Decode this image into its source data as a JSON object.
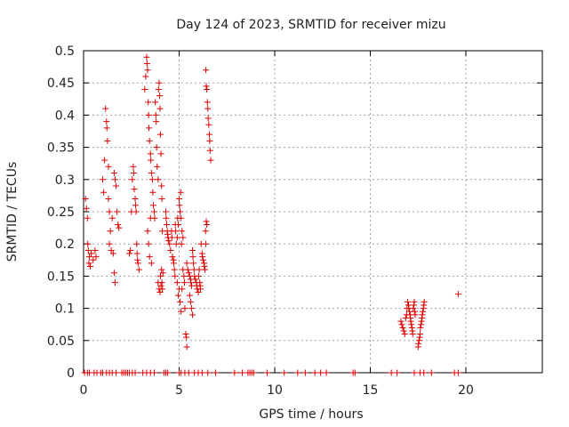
{
  "chart_data": {
    "type": "scatter",
    "title": "Day 124 of 2023, SRMTID for receiver mizu",
    "xlabel": "GPS time / hours",
    "ylabel": "SRMTID / TECUs",
    "xlim": [
      0,
      24
    ],
    "ylim": [
      0,
      0.5
    ],
    "xticks": [
      0,
      5,
      10,
      15,
      20
    ],
    "yticks": [
      0,
      0.05,
      0.1,
      0.15,
      0.2,
      0.25,
      0.3,
      0.35,
      0.4,
      0.45,
      0.5
    ],
    "xtick_labels": [
      "0",
      "5",
      "10",
      "15",
      "20"
    ],
    "ytick_labels": [
      "0",
      "0.05",
      "0.1",
      "0.15",
      "0.2",
      "0.25",
      "0.3",
      "0.35",
      "0.4",
      "0.45",
      "0.5"
    ],
    "grid": true,
    "marker": "+",
    "marker_color": "#dd0000",
    "series": [
      {
        "name": "mizu",
        "points": [
          [
            0.1,
            0.27
          ],
          [
            0.15,
            0.255
          ],
          [
            0.2,
            0.24
          ],
          [
            0.22,
            0.2
          ],
          [
            0.25,
            0.19
          ],
          [
            0.28,
            0.17
          ],
          [
            0.3,
            0.18
          ],
          [
            0.35,
            0.165
          ],
          [
            0.4,
            0.185
          ],
          [
            0.5,
            0.175
          ],
          [
            0.6,
            0.19
          ],
          [
            0.65,
            0.18
          ],
          [
            1.0,
            0.3
          ],
          [
            1.05,
            0.28
          ],
          [
            1.1,
            0.33
          ],
          [
            1.15,
            0.41
          ],
          [
            1.2,
            0.39
          ],
          [
            1.22,
            0.38
          ],
          [
            1.25,
            0.36
          ],
          [
            1.3,
            0.32
          ],
          [
            1.3,
            0.27
          ],
          [
            1.35,
            0.25
          ],
          [
            1.35,
            0.2
          ],
          [
            1.4,
            0.22
          ],
          [
            1.45,
            0.19
          ],
          [
            1.5,
            0.24
          ],
          [
            1.55,
            0.185
          ],
          [
            1.6,
            0.31
          ],
          [
            1.65,
            0.3
          ],
          [
            1.7,
            0.29
          ],
          [
            1.75,
            0.25
          ],
          [
            1.8,
            0.23
          ],
          [
            1.85,
            0.225
          ],
          [
            1.6,
            0.155
          ],
          [
            1.65,
            0.14
          ],
          [
            2.4,
            0.185
          ],
          [
            2.45,
            0.19
          ],
          [
            2.5,
            0.25
          ],
          [
            2.55,
            0.3
          ],
          [
            2.6,
            0.32
          ],
          [
            2.62,
            0.31
          ],
          [
            2.65,
            0.285
          ],
          [
            2.7,
            0.27
          ],
          [
            2.72,
            0.26
          ],
          [
            2.75,
            0.25
          ],
          [
            2.78,
            0.2
          ],
          [
            2.8,
            0.185
          ],
          [
            2.82,
            0.175
          ],
          [
            2.85,
            0.17
          ],
          [
            2.9,
            0.16
          ],
          [
            3.2,
            0.44
          ],
          [
            3.25,
            0.46
          ],
          [
            3.3,
            0.49
          ],
          [
            3.32,
            0.48
          ],
          [
            3.35,
            0.47
          ],
          [
            3.38,
            0.42
          ],
          [
            3.4,
            0.4
          ],
          [
            3.42,
            0.38
          ],
          [
            3.45,
            0.36
          ],
          [
            3.5,
            0.34
          ],
          [
            3.52,
            0.33
          ],
          [
            3.55,
            0.31
          ],
          [
            3.6,
            0.3
          ],
          [
            3.62,
            0.28
          ],
          [
            3.65,
            0.26
          ],
          [
            3.7,
            0.25
          ],
          [
            3.72,
            0.24
          ],
          [
            3.75,
            0.42
          ],
          [
            3.78,
            0.4
          ],
          [
            3.8,
            0.39
          ],
          [
            3.82,
            0.35
          ],
          [
            3.85,
            0.32
          ],
          [
            3.9,
            0.3
          ],
          [
            3.92,
            0.44
          ],
          [
            3.95,
            0.45
          ],
          [
            3.98,
            0.43
          ],
          [
            4.0,
            0.41
          ],
          [
            4.02,
            0.37
          ],
          [
            4.05,
            0.34
          ],
          [
            4.08,
            0.29
          ],
          [
            4.1,
            0.27
          ],
          [
            4.12,
            0.22
          ],
          [
            3.35,
            0.22
          ],
          [
            3.4,
            0.2
          ],
          [
            3.45,
            0.18
          ],
          [
            3.5,
            0.24
          ],
          [
            3.55,
            0.17
          ],
          [
            3.9,
            0.14
          ],
          [
            3.95,
            0.13
          ],
          [
            4.0,
            0.125
          ],
          [
            4.02,
            0.15
          ],
          [
            4.05,
            0.135
          ],
          [
            4.08,
            0.16
          ],
          [
            4.1,
            0.14
          ],
          [
            4.12,
            0.13
          ],
          [
            4.15,
            0.155
          ],
          [
            4.3,
            0.25
          ],
          [
            4.32,
            0.24
          ],
          [
            4.35,
            0.23
          ],
          [
            4.38,
            0.22
          ],
          [
            4.4,
            0.215
          ],
          [
            4.42,
            0.21
          ],
          [
            4.45,
            0.205
          ],
          [
            4.5,
            0.2
          ],
          [
            4.55,
            0.19
          ],
          [
            4.6,
            0.22
          ],
          [
            4.62,
            0.21
          ],
          [
            4.65,
            0.18
          ],
          [
            4.7,
            0.175
          ],
          [
            4.72,
            0.17
          ],
          [
            4.75,
            0.16
          ],
          [
            4.78,
            0.15
          ],
          [
            4.8,
            0.23
          ],
          [
            4.82,
            0.22
          ],
          [
            4.85,
            0.2
          ],
          [
            4.9,
            0.21
          ],
          [
            4.92,
            0.24
          ],
          [
            4.95,
            0.23
          ],
          [
            5.0,
            0.27
          ],
          [
            5.02,
            0.26
          ],
          [
            5.05,
            0.25
          ],
          [
            5.08,
            0.28
          ],
          [
            5.1,
            0.24
          ],
          [
            5.12,
            0.2
          ],
          [
            5.15,
            0.22
          ],
          [
            5.2,
            0.21
          ],
          [
            4.9,
            0.14
          ],
          [
            4.95,
            0.12
          ],
          [
            5.0,
            0.13
          ],
          [
            5.05,
            0.11
          ],
          [
            5.1,
            0.095
          ],
          [
            5.15,
            0.13
          ],
          [
            5.2,
            0.16
          ],
          [
            5.25,
            0.15
          ],
          [
            5.28,
            0.14
          ],
          [
            5.3,
            0.1
          ],
          [
            5.35,
            0.06
          ],
          [
            5.38,
            0.055
          ],
          [
            5.4,
            0.04
          ],
          [
            5.4,
            0.17
          ],
          [
            5.45,
            0.16
          ],
          [
            5.5,
            0.155
          ],
          [
            5.55,
            0.15
          ],
          [
            5.6,
            0.145
          ],
          [
            5.62,
            0.14
          ],
          [
            5.65,
            0.135
          ],
          [
            5.7,
            0.19
          ],
          [
            5.72,
            0.18
          ],
          [
            5.75,
            0.17
          ],
          [
            5.78,
            0.16
          ],
          [
            5.8,
            0.15
          ],
          [
            5.85,
            0.145
          ],
          [
            5.9,
            0.14
          ],
          [
            5.92,
            0.135
          ],
          [
            5.95,
            0.13
          ],
          [
            6.0,
            0.125
          ],
          [
            6.02,
            0.15
          ],
          [
            6.05,
            0.16
          ],
          [
            6.08,
            0.14
          ],
          [
            6.1,
            0.135
          ],
          [
            6.12,
            0.13
          ],
          [
            6.15,
            0.2
          ],
          [
            6.2,
            0.185
          ],
          [
            6.22,
            0.18
          ],
          [
            6.25,
            0.175
          ],
          [
            6.3,
            0.17
          ],
          [
            6.32,
            0.165
          ],
          [
            6.35,
            0.16
          ],
          [
            6.38,
            0.22
          ],
          [
            6.4,
            0.2
          ],
          [
            6.42,
            0.235
          ],
          [
            6.45,
            0.23
          ],
          [
            5.55,
            0.12
          ],
          [
            5.6,
            0.11
          ],
          [
            5.65,
            0.1
          ],
          [
            5.7,
            0.09
          ],
          [
            6.4,
            0.47
          ],
          [
            6.42,
            0.445
          ],
          [
            6.45,
            0.44
          ],
          [
            6.48,
            0.42
          ],
          [
            6.5,
            0.41
          ],
          [
            6.52,
            0.395
          ],
          [
            6.55,
            0.385
          ],
          [
            6.58,
            0.37
          ],
          [
            6.6,
            0.36
          ],
          [
            6.62,
            0.345
          ],
          [
            6.65,
            0.33
          ],
          [
            16.6,
            0.08
          ],
          [
            16.65,
            0.075
          ],
          [
            16.7,
            0.07
          ],
          [
            16.75,
            0.065
          ],
          [
            16.8,
            0.06
          ],
          [
            16.85,
            0.085
          ],
          [
            16.9,
            0.09
          ],
          [
            16.92,
            0.1
          ],
          [
            16.95,
            0.11
          ],
          [
            17.0,
            0.105
          ],
          [
            17.02,
            0.1
          ],
          [
            17.05,
            0.095
          ],
          [
            17.08,
            0.09
          ],
          [
            17.1,
            0.085
          ],
          [
            17.12,
            0.08
          ],
          [
            17.15,
            0.075
          ],
          [
            17.18,
            0.07
          ],
          [
            17.2,
            0.065
          ],
          [
            17.22,
            0.06
          ],
          [
            17.25,
            0.1
          ],
          [
            17.28,
            0.105
          ],
          [
            17.3,
            0.11
          ],
          [
            17.32,
            0.095
          ],
          [
            17.35,
            0.09
          ],
          [
            17.5,
            0.04
          ],
          [
            17.52,
            0.045
          ],
          [
            17.55,
            0.05
          ],
          [
            17.58,
            0.055
          ],
          [
            17.6,
            0.06
          ],
          [
            17.62,
            0.07
          ],
          [
            17.65,
            0.075
          ],
          [
            17.68,
            0.08
          ],
          [
            17.7,
            0.085
          ],
          [
            17.72,
            0.09
          ],
          [
            17.75,
            0.095
          ],
          [
            17.78,
            0.1
          ],
          [
            17.8,
            0.105
          ],
          [
            17.82,
            0.11
          ],
          [
            19.6,
            0.122
          ],
          [
            0.05,
            0
          ],
          [
            0.2,
            0
          ],
          [
            0.3,
            0
          ],
          [
            0.55,
            0
          ],
          [
            0.7,
            0
          ],
          [
            0.9,
            0
          ],
          [
            1.0,
            0
          ],
          [
            1.2,
            0
          ],
          [
            1.35,
            0
          ],
          [
            1.5,
            0
          ],
          [
            1.7,
            0
          ],
          [
            2.0,
            0
          ],
          [
            2.1,
            0
          ],
          [
            2.2,
            0
          ],
          [
            2.3,
            0
          ],
          [
            2.4,
            0
          ],
          [
            2.55,
            0
          ],
          [
            2.7,
            0
          ],
          [
            3.1,
            0
          ],
          [
            3.3,
            0
          ],
          [
            3.5,
            0
          ],
          [
            3.7,
            0
          ],
          [
            4.2,
            0
          ],
          [
            4.3,
            0
          ],
          [
            4.4,
            0
          ],
          [
            5.0,
            0
          ],
          [
            5.1,
            0
          ],
          [
            5.3,
            0
          ],
          [
            5.5,
            0
          ],
          [
            5.8,
            0
          ],
          [
            6.0,
            0
          ],
          [
            6.2,
            0
          ],
          [
            6.5,
            0
          ],
          [
            6.9,
            0
          ],
          [
            7.9,
            0
          ],
          [
            8.3,
            0
          ],
          [
            8.6,
            0
          ],
          [
            8.7,
            0
          ],
          [
            8.8,
            0
          ],
          [
            8.9,
            0
          ],
          [
            9.6,
            0
          ],
          [
            10.5,
            0
          ],
          [
            11.2,
            0
          ],
          [
            11.6,
            0
          ],
          [
            12.1,
            0
          ],
          [
            12.4,
            0
          ],
          [
            12.7,
            0
          ],
          [
            14.1,
            0
          ],
          [
            14.2,
            0
          ],
          [
            16.1,
            0
          ],
          [
            16.4,
            0
          ],
          [
            17.3,
            0
          ],
          [
            17.6,
            0
          ],
          [
            17.8,
            0
          ],
          [
            18.2,
            0
          ],
          [
            19.4,
            0
          ],
          [
            19.6,
            0
          ]
        ]
      }
    ]
  }
}
